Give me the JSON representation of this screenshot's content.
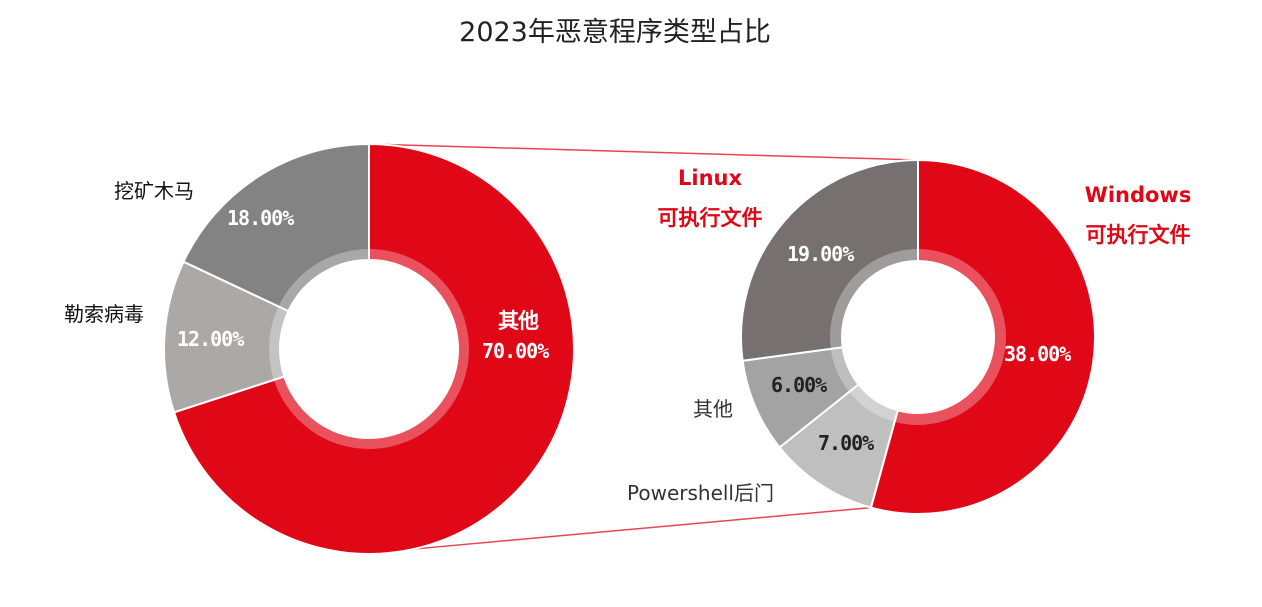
{
  "chart_data": [
    {
      "type": "pie",
      "variant": "donut",
      "title": "2023年恶意程序类型占比",
      "categories": [
        "其他",
        "勒索病毒",
        "挖矿木马"
      ],
      "values": [
        70,
        12,
        18
      ],
      "labels": [
        "70.00%",
        "12.00%",
        "18.00%"
      ],
      "colors": [
        "#e00716",
        "#aca8a6",
        "#838383"
      ]
    },
    {
      "type": "pie",
      "variant": "donut",
      "breakdown_of": "其他",
      "categories": [
        "Windows可执行文件",
        "Powershell后门",
        "其他",
        "Linux可执行文件"
      ],
      "values": [
        38,
        7,
        6,
        19
      ],
      "labels": [
        "38.00%",
        "7.00%",
        "6.00%",
        "19.00%"
      ],
      "colors": [
        "#e00716",
        "#c0bfbf",
        "#a3a3a3",
        "#767170"
      ]
    }
  ],
  "text": {
    "title": "2023年恶意程序类型占比",
    "left_other": "其他",
    "left_ransom": "勒索病毒",
    "left_mining": "挖矿木马",
    "linux_1": "Linux",
    "linux_2": "可执行文件",
    "windows_1": "Windows",
    "windows_2": "可执行文件",
    "right_other": "其他",
    "powershell": "Powershell后门"
  }
}
